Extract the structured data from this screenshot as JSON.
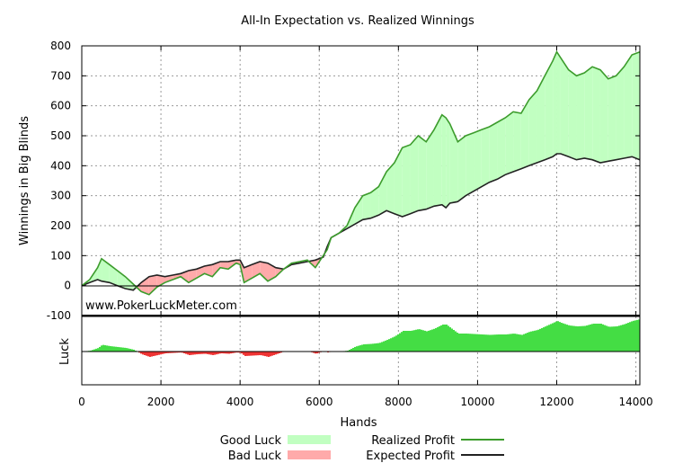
{
  "chart_data": {
    "type": "line",
    "title": "All-In Expectation vs. Realized Winnings",
    "xlabel": "Hands",
    "ylabel": "Winnings in Big Blinds",
    "luck_label": "Luck",
    "watermark": "www.PokerLuckMeter.com",
    "xlim": [
      0,
      14100
    ],
    "ylim": [
      -100,
      800
    ],
    "x_ticks": [
      "0",
      "2000",
      "4000",
      "6000",
      "8000",
      "10000",
      "12000",
      "14000"
    ],
    "x_tick_values": [
      0,
      2000,
      4000,
      6000,
      8000,
      10000,
      12000,
      14000
    ],
    "y_ticks": [
      "-100",
      "0",
      "100",
      "200",
      "300",
      "400",
      "500",
      "600",
      "700",
      "800"
    ],
    "y_tick_values": [
      -100,
      0,
      100,
      200,
      300,
      400,
      500,
      600,
      700,
      800
    ],
    "grid": true,
    "legend_position": "bottom",
    "legend": {
      "good_luck": "Good Luck",
      "bad_luck": "Bad Luck",
      "realized": "Realized Profit",
      "expected": "Expected Profit"
    },
    "colors": {
      "good_luck": "#c1ffc1",
      "bad_luck": "#ffaaaa",
      "realized": "#3c9c2c",
      "expected": "#222222",
      "luck_good": "#44dd44",
      "luck_bad": "#ee3333"
    },
    "x": [
      0,
      200,
      400,
      500,
      700,
      900,
      1100,
      1300,
      1500,
      1700,
      1900,
      2100,
      2300,
      2500,
      2700,
      2900,
      3100,
      3300,
      3500,
      3700,
      3900,
      4000,
      4100,
      4300,
      4500,
      4700,
      4900,
      5100,
      5300,
      5500,
      5700,
      5900,
      6100,
      6200,
      6300,
      6500,
      6700,
      6900,
      7100,
      7300,
      7500,
      7700,
      7900,
      8100,
      8300,
      8500,
      8700,
      8900,
      9100,
      9200,
      9300,
      9500,
      9700,
      9900,
      10100,
      10300,
      10500,
      10700,
      10900,
      11100,
      11300,
      11500,
      11700,
      11900,
      12000,
      12100,
      12300,
      12500,
      12700,
      12900,
      13100,
      13300,
      13500,
      13700,
      13900,
      14100
    ],
    "series": [
      {
        "name": "Realized Profit",
        "values": [
          0,
          20,
          60,
          90,
          70,
          50,
          30,
          5,
          -20,
          -30,
          -5,
          10,
          20,
          30,
          10,
          25,
          40,
          30,
          60,
          55,
          75,
          70,
          10,
          25,
          40,
          15,
          30,
          55,
          75,
          80,
          85,
          60,
          100,
          120,
          160,
          175,
          200,
          260,
          300,
          310,
          330,
          380,
          410,
          460,
          470,
          500,
          480,
          520,
          570,
          560,
          540,
          480,
          500,
          510,
          520,
          530,
          545,
          560,
          580,
          575,
          620,
          650,
          700,
          750,
          780,
          760,
          720,
          700,
          710,
          730,
          720,
          690,
          700,
          730,
          770,
          780
        ]
      },
      {
        "name": "Expected Profit",
        "values": [
          0,
          10,
          20,
          15,
          10,
          0,
          -10,
          -15,
          10,
          30,
          35,
          30,
          35,
          40,
          50,
          55,
          65,
          70,
          80,
          80,
          85,
          85,
          60,
          70,
          80,
          75,
          60,
          55,
          70,
          75,
          80,
          85,
          95,
          130,
          160,
          175,
          190,
          205,
          220,
          225,
          235,
          250,
          240,
          230,
          240,
          250,
          255,
          265,
          270,
          260,
          275,
          280,
          300,
          315,
          330,
          345,
          355,
          370,
          380,
          390,
          400,
          410,
          420,
          430,
          440,
          440,
          430,
          420,
          425,
          420,
          410,
          415,
          420,
          425,
          430,
          420
        ]
      }
    ]
  }
}
